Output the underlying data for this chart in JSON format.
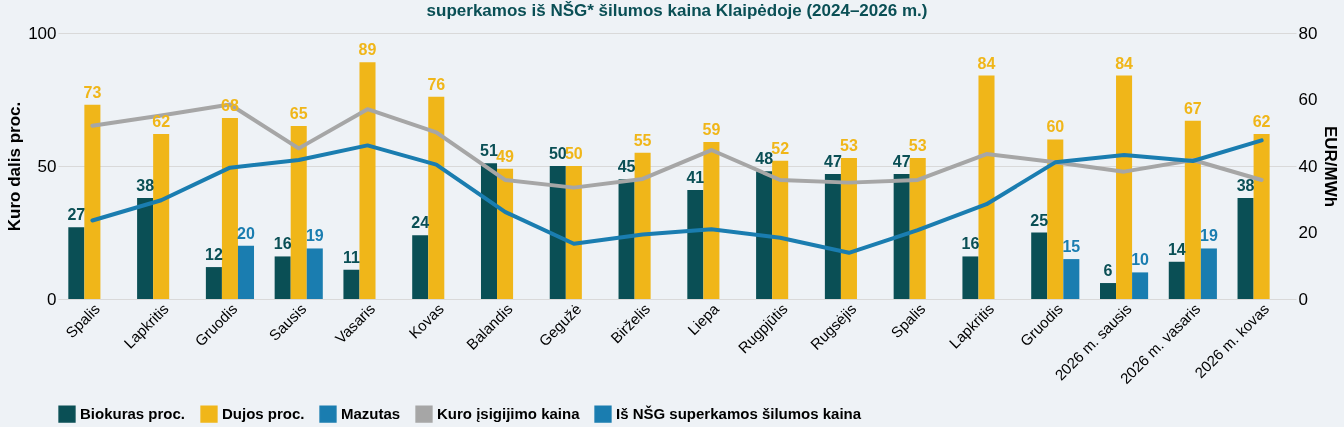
{
  "chart_data": {
    "type": "bar",
    "title": "superkamos iš NŠG* šilumos kaina Klaipėdoje (2024–2026 m.)",
    "ylabel": "Kuro dalis proc.",
    "y2label": "EUR/MWh",
    "categories": [
      "Spalis",
      "Lapkritis",
      "Gruodis",
      "Sausis",
      "Vasaris",
      "Kovas",
      "Balandis",
      "Gegužė",
      "Birželis",
      "Liepa",
      "Rugpjūtis",
      "Rugsėjis",
      "Spalis",
      "Lapkritis",
      "Gruodis",
      "2026 m. sausis",
      "2026 m. vasaris",
      "2026 m. kovas"
    ],
    "series": [
      {
        "name": "Biokuras proc.",
        "color": "#0a4f55",
        "values": [
          27,
          38,
          12,
          16,
          11,
          24,
          51,
          50,
          45,
          41,
          48,
          47,
          47,
          16,
          25,
          6,
          14,
          38
        ],
        "value_labels": [
          "27",
          "38",
          "12",
          "16",
          "11",
          "24",
          "51",
          "50",
          "45",
          "41",
          "48",
          "47",
          "47",
          "16",
          "25",
          "6",
          "14",
          "38"
        ]
      },
      {
        "name": "Dujos proc.",
        "color": "#f0b619",
        "values": [
          73,
          62,
          68,
          65,
          89,
          76,
          49,
          50,
          55,
          59,
          52,
          53,
          53,
          84,
          60,
          84,
          67,
          62
        ],
        "value_labels": [
          "73",
          "62",
          "68",
          "65",
          "89",
          "76",
          "49",
          "50",
          "55",
          "59",
          "52",
          "53",
          "53",
          "84",
          "60",
          "84",
          "67",
          "62"
        ]
      },
      {
        "name": "Mazutas",
        "color": "#1a7db0",
        "values": [
          null,
          null,
          20,
          19,
          null,
          null,
          null,
          null,
          null,
          null,
          null,
          null,
          null,
          null,
          15,
          10,
          19,
          null
        ],
        "value_labels": [
          null,
          null,
          "20",
          "19",
          null,
          null,
          null,
          null,
          null,
          null,
          null,
          null,
          null,
          null,
          "15",
          "10",
          "19",
          null
        ]
      },
      {
        "name": "Kuro įsigijimo kaina",
        "type": "line",
        "axis": "y2",
        "color": "#a6a6a6",
        "values": [
          52.1,
          55.2,
          58.5,
          45.3,
          57.1,
          50.1,
          35.8,
          33.5,
          36.1,
          44.8,
          35.8,
          35.0,
          35.8,
          43.6,
          41.1,
          38.3,
          41.8,
          35.8
        ]
      },
      {
        "name": "Iš NŠG superkamos šilumos kaina",
        "type": "line",
        "axis": "y2",
        "color": "#1a7db0",
        "values": [
          23.6,
          29.7,
          39.5,
          41.8,
          46.2,
          40.4,
          26.2,
          16.6,
          19.4,
          21.0,
          18.4,
          13.9,
          20.7,
          28.5,
          41.1,
          43.3,
          41.5,
          47.7
        ]
      }
    ],
    "ylim": [
      0,
      100
    ],
    "yticks": [
      0,
      50,
      100
    ],
    "y2lim": [
      0,
      80
    ],
    "y2ticks": [
      0,
      20,
      40,
      60,
      80
    ],
    "grid": "y",
    "legend": "bottom"
  }
}
